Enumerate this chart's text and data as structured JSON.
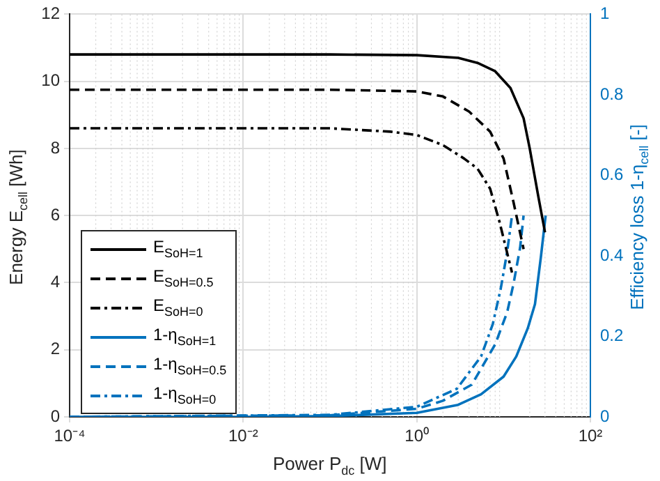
{
  "chart_data": {
    "type": "line",
    "xlabel": "Power P$_{dc}$ [W]",
    "ylabel": "Energy E$_{cell}$ [Wh]",
    "y2label": "Efficiency loss 1-η$_{cell}$ [-]",
    "log": "x",
    "grid": true,
    "legend": "bottom left",
    "marker": "none",
    "xlim": [
      0.0001,
      100
    ],
    "xticks": [
      {
        "value": 0.0001,
        "label": "10⁻⁴"
      },
      {
        "value": 0.01,
        "label": "10⁻²"
      },
      {
        "value": 1,
        "label": "10⁰"
      },
      {
        "value": 100,
        "label": "10²"
      }
    ],
    "ylim": [
      0,
      12
    ],
    "yticks": [
      0,
      2,
      4,
      6,
      8,
      10,
      12
    ],
    "y2lim": [
      0,
      1
    ],
    "y2ticks": [
      0,
      0.2,
      0.4,
      0.6,
      0.8,
      1
    ],
    "series": [
      {
        "name": "E$_{SoH=1}$",
        "color": "#000000",
        "line_style": "solid",
        "x": [
          0.0001,
          0.1,
          1,
          3,
          5,
          8,
          12,
          17,
          20,
          25,
          30
        ],
        "values": [
          10.8,
          10.8,
          10.78,
          10.7,
          10.55,
          10.3,
          9.8,
          8.9,
          8.0,
          6.6,
          5.5
        ]
      },
      {
        "name": "E$_{SoH=0.5}$",
        "color": "#000000",
        "line_style": "dashed",
        "x": [
          0.0001,
          0.1,
          1,
          2,
          4,
          7,
          10,
          13,
          17
        ],
        "values": [
          9.75,
          9.75,
          9.7,
          9.55,
          9.1,
          8.5,
          7.7,
          6.4,
          5.0
        ]
      },
      {
        "name": "E$_{SoH=0}$",
        "color": "#000000",
        "line_style": "dashdot",
        "x": [
          0.0001,
          0.1,
          0.5,
          1,
          2,
          3.5,
          5,
          7,
          9,
          12.5
        ],
        "values": [
          8.6,
          8.6,
          8.5,
          8.4,
          8.1,
          7.7,
          7.4,
          6.8,
          5.8,
          4.3
        ]
      },
      {
        "name": "1-η$_{SoH=1}$",
        "color": "#0072bd",
        "line_style": "solid",
        "axis": "y2",
        "x": [
          0.0001,
          0.01,
          0.1,
          1,
          3,
          5.5,
          10,
          14,
          19,
          23,
          27,
          30.5
        ],
        "values": [
          0,
          0,
          0.002,
          0.01,
          0.03,
          0.056,
          0.1,
          0.15,
          0.22,
          0.28,
          0.4,
          0.5
        ]
      },
      {
        "name": "1-η$_{SoH=0.5}$",
        "color": "#0072bd",
        "line_style": "dashed",
        "axis": "y2",
        "x": [
          0.0001,
          0.1,
          1,
          2,
          4.3,
          8,
          11,
          13,
          15.5,
          17
        ],
        "values": [
          0,
          0.004,
          0.02,
          0.04,
          0.08,
          0.18,
          0.26,
          0.33,
          0.42,
          0.5
        ]
      },
      {
        "name": "1-η$_{SoH=0}$",
        "color": "#0072bd",
        "line_style": "dashdot",
        "axis": "y2",
        "x": [
          0.0001,
          0.1,
          1,
          2.9,
          5.5,
          7.5,
          9.3,
          11,
          12.5
        ],
        "values": [
          0,
          0.005,
          0.025,
          0.07,
          0.15,
          0.23,
          0.32,
          0.41,
          0.5
        ]
      }
    ]
  }
}
